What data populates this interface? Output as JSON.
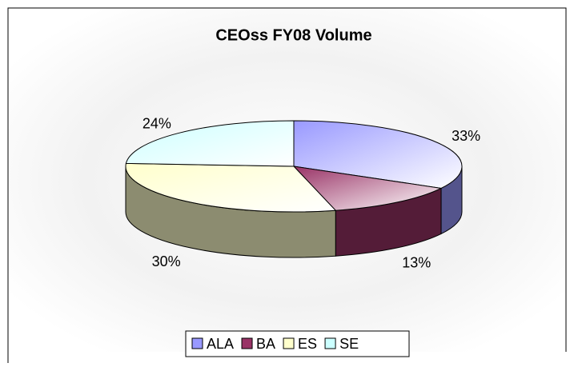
{
  "chart_data": {
    "type": "pie",
    "title": "CEOss FY08 Volume",
    "categories": [
      "ALA",
      "BA",
      "ES",
      "SE"
    ],
    "values": [
      33,
      13,
      30,
      24
    ],
    "value_labels": [
      "33%",
      "13%",
      "30%",
      "24%"
    ],
    "colors": [
      "#9999ff",
      "#993366",
      "#ffffcc",
      "#ccffff"
    ],
    "legend": "bottom"
  }
}
